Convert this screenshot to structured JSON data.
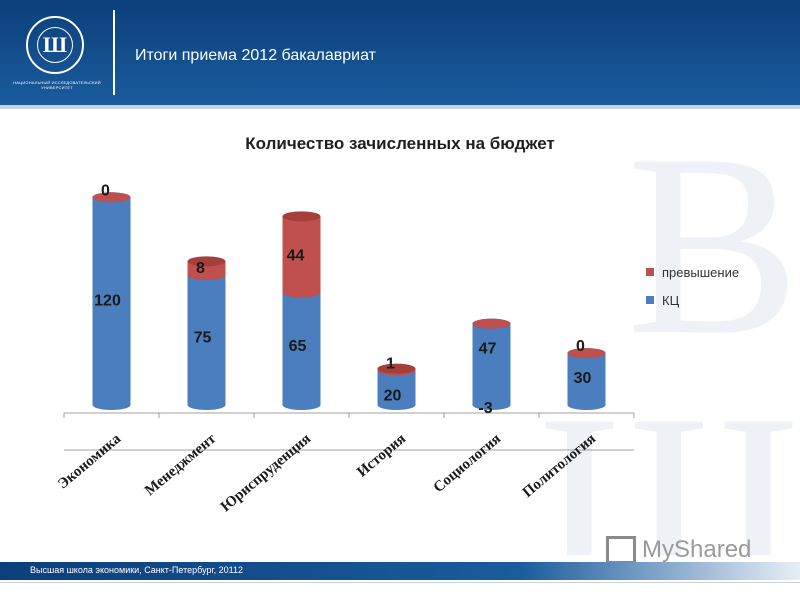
{
  "header": {
    "title": "Итоги приема 2012 бакалавриат",
    "logo_caption": "НАЦИОНАЛЬНЫЙ ИССЛЕДОВАТЕЛЬСКИЙ УНИВЕРСИТЕТ"
  },
  "footer": {
    "text": "Высшая школа экономики, Санкт-Петербург, 20112"
  },
  "watermark_brand": "MyShared",
  "colors": {
    "kc": "#4a7ebf",
    "kc_dark": "#2f5f9e",
    "excess": "#c0504d",
    "excess_dark": "#9c3a37",
    "header_blue": "#15508f"
  },
  "chart_data": {
    "type": "bar",
    "stacked": true,
    "style": "3d-cylinder",
    "title": "Количество зачисленных на бюджет",
    "categories": [
      "Экономика",
      "Менеджмент",
      "Юриспруденция",
      "История",
      "Социология",
      "Политология"
    ],
    "series": [
      {
        "name": "КЦ",
        "color": "#4a7ebf",
        "values": [
          120,
          75,
          65,
          20,
          47,
          30
        ]
      },
      {
        "name": "превышение",
        "color": "#c0504d",
        "values": [
          0,
          8,
          44,
          1,
          -3,
          0
        ]
      }
    ],
    "legend_order": [
      "превышение",
      "КЦ"
    ],
    "legend_position": "right",
    "ylim": [
      0,
      130
    ],
    "grid": false,
    "data_labels": true
  }
}
